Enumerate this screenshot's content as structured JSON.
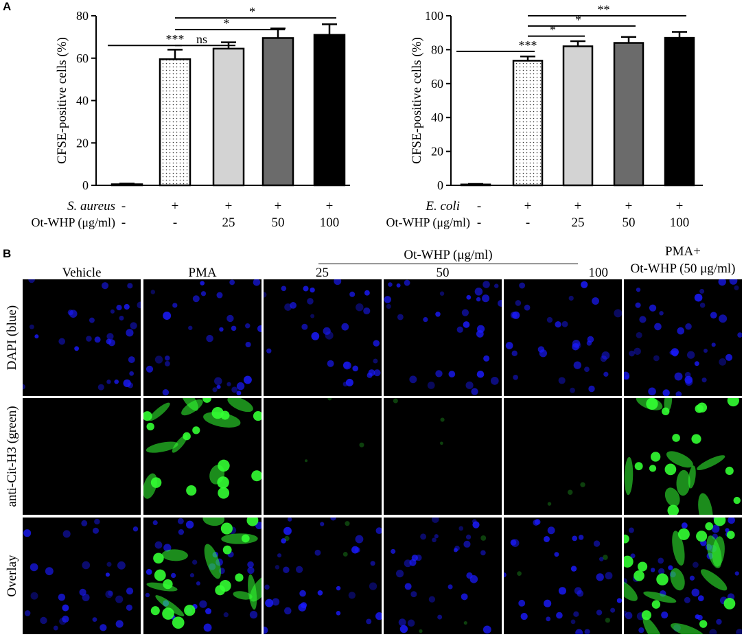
{
  "panel_a_letter": "A",
  "panel_b_letter": "B",
  "chart_data": [
    {
      "type": "bar",
      "ylabel": "CFSE-positive cells (%)",
      "ylim": [
        0,
        80
      ],
      "yticks": [
        0,
        20,
        40,
        60,
        80
      ],
      "categories": [
        "1",
        "2",
        "3",
        "4",
        "5"
      ],
      "values": [
        0.5,
        59.5,
        64.5,
        69.5,
        71
      ],
      "errors": [
        0.3,
        4.5,
        3,
        4.5,
        5
      ],
      "fills": [
        "#ffffff",
        "dots",
        "#d3d3d3",
        "#6b6b6b",
        "#000000"
      ],
      "row1": {
        "label": "S. aureus",
        "values": [
          "-",
          "+",
          "+",
          "+",
          "+"
        ]
      },
      "row2": {
        "label": "Ot-WHP (μg/ml)",
        "values": [
          "-",
          "-",
          "25",
          "50",
          "100"
        ]
      },
      "annotations": [
        {
          "label": "***",
          "from": 0,
          "to": 1,
          "y": 66
        },
        {
          "label": "ns",
          "from": 1,
          "to": 2,
          "y": 66
        },
        {
          "label": "*",
          "from": 1,
          "to": 3,
          "y": 73.5
        },
        {
          "label": "*",
          "from": 1,
          "to": 4,
          "y": 79
        }
      ]
    },
    {
      "type": "bar",
      "ylabel": "CFSE-positive cells (%)",
      "ylim": [
        0,
        100
      ],
      "yticks": [
        0,
        20,
        40,
        60,
        80,
        100
      ],
      "categories": [
        "1",
        "2",
        "3",
        "4",
        "5"
      ],
      "values": [
        0.5,
        73.5,
        82,
        84,
        87
      ],
      "errors": [
        0.3,
        2.5,
        3,
        3.5,
        3.5
      ],
      "fills": [
        "#ffffff",
        "dots",
        "#d3d3d3",
        "#6b6b6b",
        "#000000"
      ],
      "row1": {
        "label": "E. coli",
        "values": [
          "-",
          "+",
          "+",
          "+",
          "+"
        ]
      },
      "row2": {
        "label": "Ot-WHP (μg/ml)",
        "values": [
          "-",
          "-",
          "25",
          "50",
          "100"
        ]
      },
      "annotations": [
        {
          "label": "***",
          "from": 0,
          "to": 1,
          "y": 79
        },
        {
          "label": "*",
          "from": 1,
          "to": 2,
          "y": 88
        },
        {
          "label": "*",
          "from": 1,
          "to": 3,
          "y": 94
        },
        {
          "label": "**",
          "from": 1,
          "to": 4,
          "y": 100
        }
      ]
    }
  ],
  "micrographs": {
    "header_group_label": "Ot-WHP (μg/ml)",
    "columns": [
      "Vehicle",
      "PMA",
      "25",
      "50",
      "100",
      "PMA+"
    ],
    "last_column_second_line": "Ot-WHP (50 μg/ml)",
    "rows": [
      "DAPI (blue)",
      "anti-Cit-H3 (green)",
      "Overlay"
    ],
    "colors": {
      "blue": "#1a1aff",
      "green": "#33ff33"
    },
    "green_intensity": [
      0,
      1,
      0.05,
      0.03,
      0.02,
      1
    ]
  }
}
